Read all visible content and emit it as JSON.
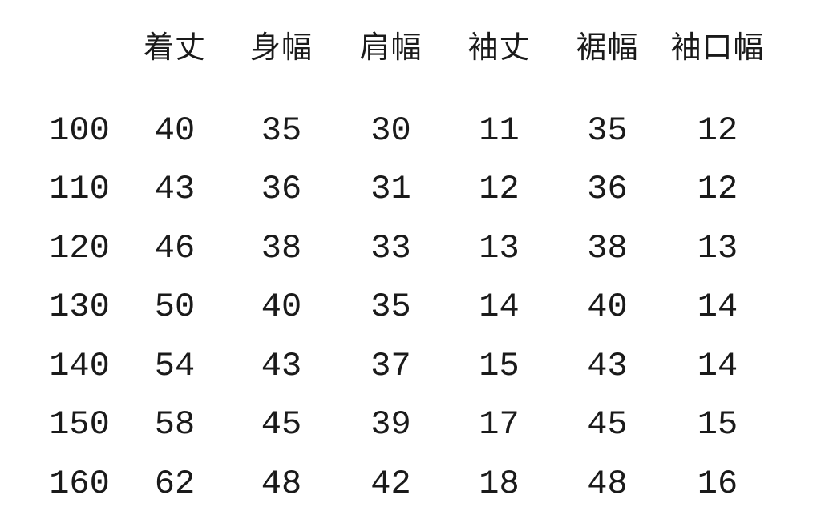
{
  "page": {
    "background_color": "#ffffff",
    "text_color": "#1a1a1a",
    "description_label": "size-chart-table"
  },
  "chart_data": {
    "type": "table",
    "title": "",
    "columns": [
      "",
      "着丈",
      "身幅",
      "肩幅",
      "袖丈",
      "裾幅",
      "袖口幅"
    ],
    "row_header_label": "size",
    "rows": [
      [
        "100",
        "40",
        "35",
        "30",
        "11",
        "35",
        "12"
      ],
      [
        "110",
        "43",
        "36",
        "31",
        "12",
        "36",
        "12"
      ],
      [
        "120",
        "46",
        "38",
        "33",
        "13",
        "38",
        "13"
      ],
      [
        "130",
        "50",
        "40",
        "35",
        "14",
        "40",
        "14"
      ],
      [
        "140",
        "54",
        "43",
        "37",
        "15",
        "43",
        "14"
      ],
      [
        "150",
        "58",
        "45",
        "39",
        "17",
        "45",
        "15"
      ],
      [
        "160",
        "62",
        "48",
        "42",
        "18",
        "48",
        "16"
      ]
    ],
    "layout": {
      "grid": false,
      "borders": false,
      "header_position": "top",
      "row_labels_position": "left"
    }
  }
}
